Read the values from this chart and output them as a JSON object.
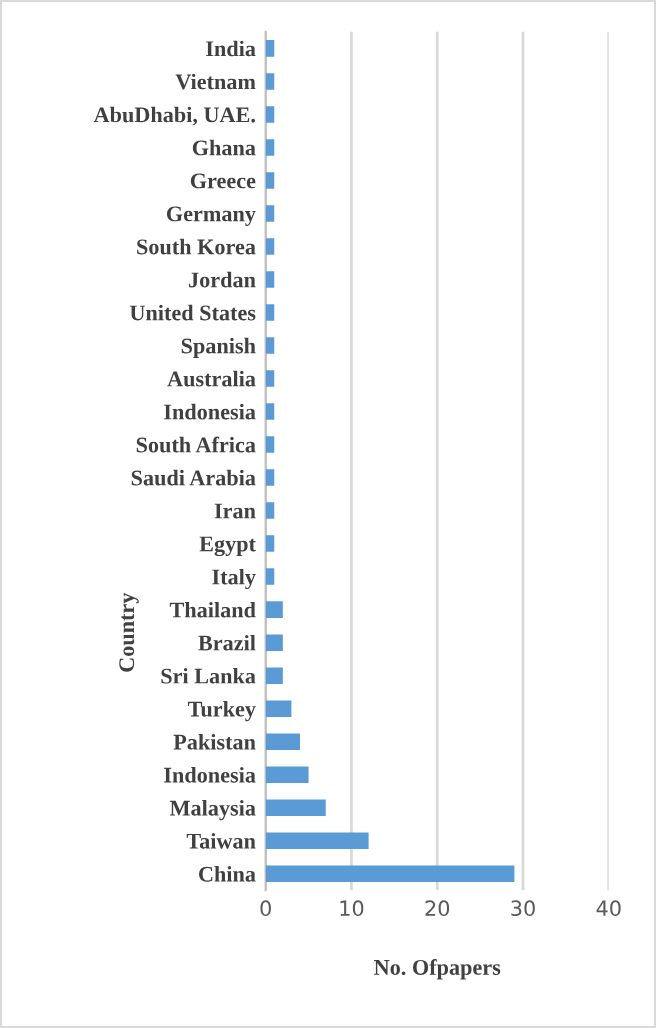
{
  "chart_data": {
    "type": "bar",
    "orientation": "horizontal",
    "xlabel": "No. Ofpapers",
    "ylabel": "Country",
    "categories": [
      "India",
      "Vietnam",
      "AbuDhabi, UAE.",
      "Ghana",
      "Greece",
      "Germany",
      "South Korea",
      "Jordan",
      "United States",
      "Spanish",
      "Australia",
      "Indonesia",
      "South Africa",
      "Saudi Arabia",
      "Iran",
      "Egypt",
      "Italy",
      "Thailand",
      "Brazil",
      "Sri Lanka",
      "Turkey",
      "Pakistan",
      "Indonesia",
      "Malaysia",
      "Taiwan",
      "China"
    ],
    "values": [
      1,
      1,
      1,
      1,
      1,
      1,
      1,
      1,
      1,
      1,
      1,
      1,
      1,
      1,
      1,
      1,
      1,
      2,
      2,
      2,
      3,
      4,
      5,
      7,
      12,
      29
    ],
    "color": "#5b9bd5",
    "xlim": [
      0,
      40
    ],
    "xticks": [
      0,
      10,
      20,
      30,
      40
    ],
    "grid": "x",
    "legend": false
  }
}
